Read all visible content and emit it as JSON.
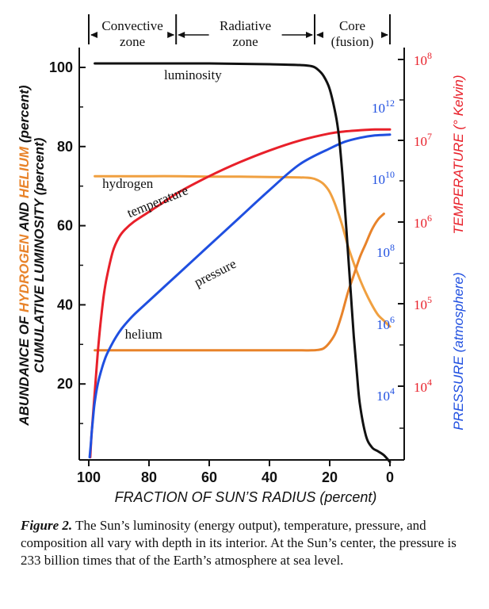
{
  "chart_data": {
    "type": "line",
    "zones": [
      {
        "label_line1": "Convective",
        "label_line2": "zone",
        "from": 100,
        "to": 71
      },
      {
        "label_line1": "Radiative",
        "label_line2": "zone",
        "from": 71,
        "to": 25
      },
      {
        "label_line1": "Core",
        "label_line2": "(fusion)",
        "from": 25,
        "to": 0
      }
    ],
    "xlabel": "FRACTION OF SUN’S RADIUS (percent)",
    "x_ticks": [
      "100",
      "80",
      "60",
      "40",
      "20",
      "0"
    ],
    "xlim": [
      100,
      0
    ],
    "left_axis": {
      "label_line1_parts": [
        {
          "text": "ABUNDANCE OF ",
          "color": "#111111"
        },
        {
          "text": "HYDROGEN",
          "color": "#e8832a"
        },
        {
          "text": " AND ",
          "color": "#111111"
        },
        {
          "text": "HELIUM",
          "color": "#e8832a"
        },
        {
          "text": " (percent)",
          "color": "#111111"
        }
      ],
      "label_line2": "CUMULATIVE LUMINOSITY (percent)",
      "ticks": [
        "100",
        "80",
        "60",
        "40",
        "20"
      ],
      "ylim": [
        0,
        100
      ]
    },
    "temperature_axis": {
      "label": "TEMPERATURE (° Kelvin)",
      "color": "#e8202a",
      "ticks": [
        {
          "base": "10",
          "exp": "8"
        },
        {
          "base": "10",
          "exp": "7"
        },
        {
          "base": "10",
          "exp": "6"
        },
        {
          "base": "10",
          "exp": "5"
        },
        {
          "base": "10",
          "exp": "4"
        }
      ]
    },
    "pressure_axis": {
      "label": "PRESSURE (atmosphere)",
      "color": "#1f4fe0",
      "ticks": [
        {
          "base": "10",
          "exp": "12"
        },
        {
          "base": "10",
          "exp": "10"
        },
        {
          "base": "10",
          "exp": "8"
        },
        {
          "base": "10",
          "exp": "6"
        },
        {
          "base": "10",
          "exp": "4"
        }
      ]
    },
    "series": [
      {
        "name": "luminosity",
        "color": "#111111",
        "x": [
          98,
          90,
          80,
          70,
          60,
          50,
          40,
          30,
          26,
          24,
          22,
          20,
          18,
          17,
          16,
          15,
          14,
          13,
          12,
          11,
          10,
          8,
          6,
          4,
          2,
          0
        ],
        "y": [
          101,
          101,
          101,
          101,
          101,
          100.9,
          100.8,
          100.6,
          100.3,
          99.5,
          97.8,
          94.5,
          88,
          83,
          75,
          65,
          54,
          43,
          32,
          23,
          15,
          7,
          4,
          3,
          2,
          0.3
        ]
      },
      {
        "name": "hydrogen",
        "color": "#f0a040",
        "x": [
          98,
          90,
          80,
          70,
          60,
          50,
          40,
          30,
          26,
          24,
          22,
          20,
          18,
          16,
          14,
          12,
          10,
          8,
          6,
          4,
          2,
          0
        ],
        "y": [
          72.5,
          72.5,
          72.5,
          72.5,
          72.4,
          72.4,
          72.3,
          72.2,
          72,
          71.5,
          70.5,
          68.5,
          65,
          60.5,
          55,
          50.5,
          46.5,
          43,
          40,
          37.5,
          36,
          34.5
        ]
      },
      {
        "name": "helium",
        "color": "#e8832a",
        "x": [
          98,
          90,
          80,
          70,
          60,
          50,
          40,
          30,
          26,
          24,
          22,
          20,
          18,
          16,
          14,
          12,
          10,
          8,
          6,
          4,
          2
        ],
        "y": [
          28.5,
          28.5,
          28.5,
          28.5,
          28.5,
          28.5,
          28.5,
          28.5,
          28.5,
          28.6,
          29,
          30.5,
          33,
          37.5,
          43,
          47.5,
          52,
          55.5,
          59,
          61.5,
          63
        ]
      },
      {
        "name": "temperature",
        "color": "#e8202a",
        "x": [
          99.5,
          99,
          98,
          97,
          96,
          95,
          94,
          92,
          90,
          88,
          85,
          80,
          75,
          70,
          60,
          50,
          40,
          30,
          20,
          15,
          10,
          5,
          0
        ],
        "y": [
          1.5,
          8,
          18,
          28,
          36,
          42.5,
          47,
          53.5,
          57,
          59,
          61,
          63.5,
          66,
          68.5,
          72.5,
          76,
          79,
          81.5,
          83.3,
          83.8,
          84.1,
          84.3,
          84.3
        ]
      },
      {
        "name": "pressure",
        "color": "#1f4fe0",
        "x": [
          99.7,
          99.3,
          99,
          98.5,
          98,
          97,
          96,
          95,
          94,
          92,
          90,
          88,
          85,
          80,
          75,
          70,
          60,
          50,
          40,
          30,
          20,
          15,
          10,
          5,
          0
        ],
        "y": [
          1.5,
          5,
          8,
          12,
          15.5,
          20,
          23,
          25.5,
          27.5,
          30.5,
          33,
          35,
          37.5,
          41,
          44.5,
          48,
          55,
          62,
          69,
          75.5,
          79.5,
          81.2,
          82.2,
          82.8,
          83
        ]
      }
    ],
    "curve_labels": [
      {
        "series": "luminosity",
        "text": "luminosity",
        "x": 75,
        "y": 97,
        "angle": 0
      },
      {
        "series": "hydrogen",
        "text": "hydrogen",
        "x": 95.5,
        "y": 69.5,
        "angle": 0
      },
      {
        "series": "temperature",
        "text": "temperature",
        "x": 86.5,
        "y": 62,
        "angle": -22
      },
      {
        "series": "pressure",
        "text": "pressure",
        "x": 64,
        "y": 44.5,
        "angle": -27
      },
      {
        "series": "helium",
        "text": "helium",
        "x": 88,
        "y": 31.5,
        "angle": 0
      }
    ]
  },
  "caption": {
    "figure_label": "Figure 2.",
    "text": "The Sun’s luminosity (energy output), temperature, pressure, and composition all vary with depth in its interior. At the Sun’s center, the pressure is 233 billion times that of the Earth’s atmosphere at sea level."
  }
}
